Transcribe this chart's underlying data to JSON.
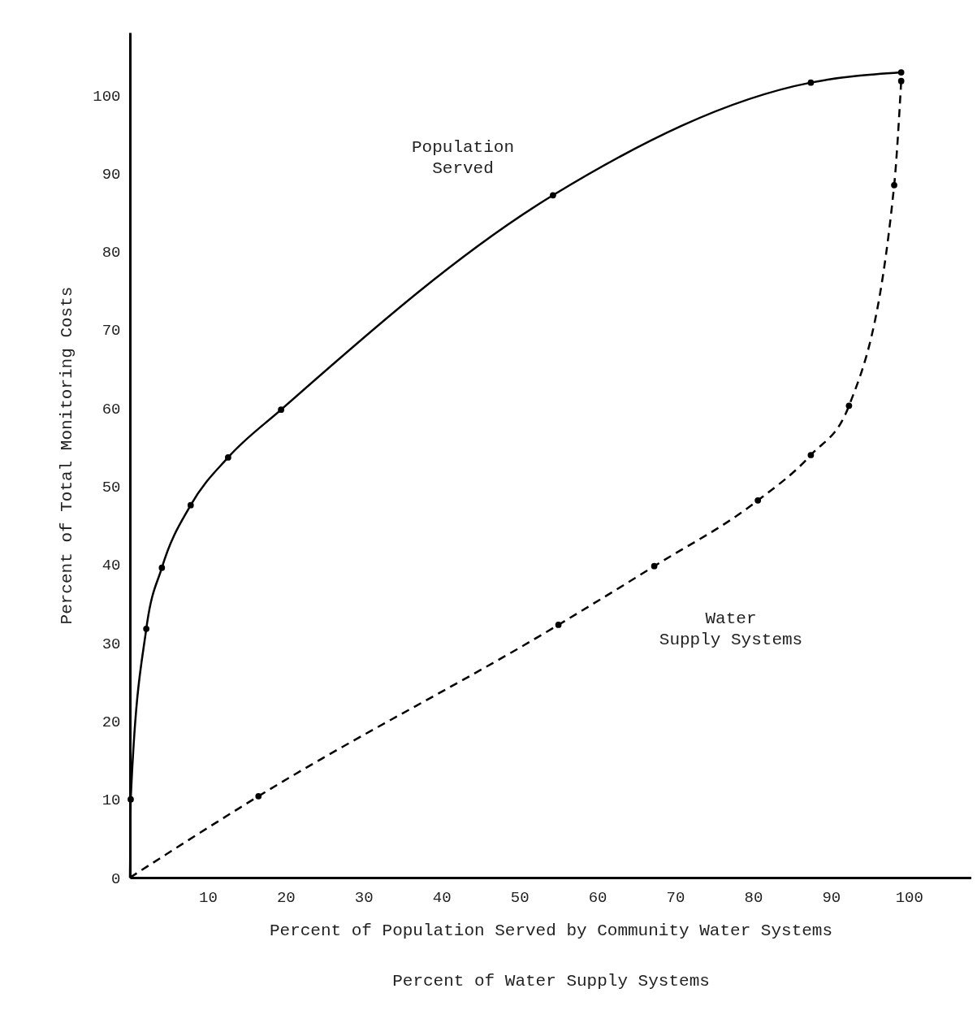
{
  "chart_data": {
    "type": "line",
    "xlabel": [
      "Percent of Population Served by Community Water Systems",
      "Percent of Water Supply Systems"
    ],
    "ylabel": "Percent of Total Monitoring Costs",
    "xlim": [
      0,
      108
    ],
    "ylim": [
      0,
      108
    ],
    "xticks": [
      10,
      20,
      30,
      40,
      50,
      60,
      70,
      80,
      90,
      100
    ],
    "yticks": [
      0,
      10,
      20,
      30,
      40,
      50,
      60,
      70,
      80,
      90,
      100
    ],
    "grid": false,
    "marker": "circle",
    "series": [
      {
        "name": "Population Served",
        "color": "#000000",
        "line_style": "solid",
        "x": [
          0,
          0.1,
          2.1,
          4.1,
          7.8,
          12.6,
          19.4,
          54.3,
          87.4,
          99
        ],
        "values": [
          0,
          10,
          31.8,
          39.6,
          47.6,
          53.7,
          59.8,
          87.2,
          101.6,
          102.9
        ]
      },
      {
        "name": "Water Supply Systems",
        "color": "#000000",
        "line_style": "dashed",
        "x": [
          0,
          16.5,
          55,
          67.3,
          80.6,
          87.4,
          92.3,
          98.1,
          99
        ],
        "values": [
          0,
          10.4,
          32.3,
          39.8,
          48.2,
          54,
          60.3,
          88.5,
          101.8
        ]
      }
    ]
  }
}
